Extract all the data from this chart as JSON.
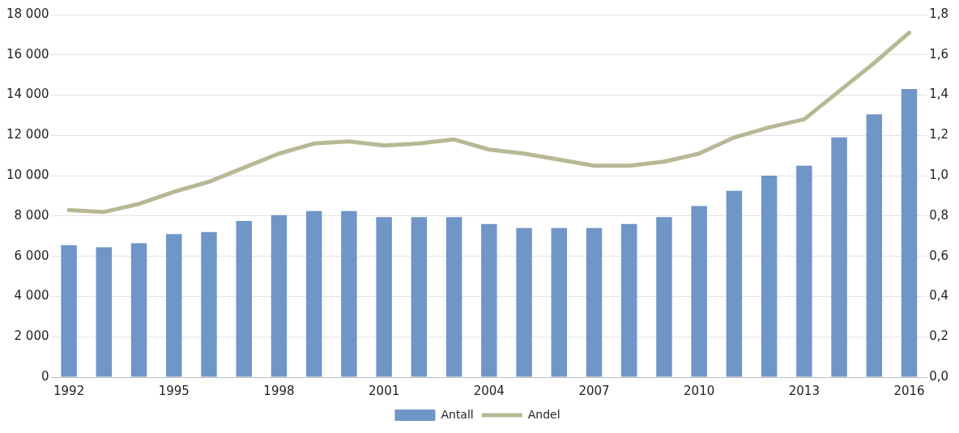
{
  "chart_data": {
    "type": "bar",
    "categories": [
      "1992",
      null,
      null,
      "1995",
      null,
      null,
      "1998",
      null,
      null,
      "2001",
      null,
      null,
      "2004",
      null,
      null,
      "2007",
      null,
      null,
      "2010",
      null,
      null,
      "2013",
      null,
      null,
      "2016"
    ],
    "series": [
      {
        "name": "Antall",
        "color": "#7095c7",
        "values": [
          6550,
          6450,
          6650,
          7100,
          7200,
          7750,
          8050,
          8250,
          8250,
          7950,
          7950,
          7950,
          7600,
          7400,
          7400,
          7400,
          7600,
          7950,
          8500,
          9250,
          10000,
          10500,
          11900,
          13050,
          14300
        ]
      },
      {
        "name": "Andel",
        "type": "line",
        "axis": "y2",
        "color": "#b8b896",
        "values": [
          0.83,
          0.82,
          0.86,
          0.92,
          0.97,
          1.04,
          1.11,
          1.16,
          1.17,
          1.15,
          1.16,
          1.18,
          1.13,
          1.11,
          1.08,
          1.05,
          1.05,
          1.07,
          1.11,
          1.19,
          1.24,
          1.28,
          1.42,
          1.56,
          1.71
        ]
      }
    ],
    "ylim": [
      0,
      18000
    ],
    "yticks": [
      0,
      {
        "value": 2000,
        "label": "2 000"
      },
      {
        "value": 4000,
        "label": "4 000"
      },
      {
        "value": 6000,
        "label": "6 000"
      },
      {
        "value": 8000,
        "label": "8 000"
      },
      {
        "value": 10000,
        "label": "10 000"
      },
      {
        "value": 12000,
        "label": "12 000"
      },
      {
        "value": 14000,
        "label": "14 000"
      },
      {
        "value": 16000,
        "label": "16 000"
      },
      {
        "value": 18000,
        "label": "18 000"
      }
    ],
    "y2lim": [
      0,
      1.8
    ],
    "y2ticks": [
      {
        "value": 0,
        "label": "0,0"
      },
      {
        "value": 0.2,
        "label": "0,2"
      },
      {
        "value": 0.4,
        "label": "0,4"
      },
      {
        "value": 0.6,
        "label": "0,6"
      },
      {
        "value": 0.8,
        "label": "0,8"
      },
      {
        "value": 1.0,
        "label": "1,0"
      },
      {
        "value": 1.2,
        "label": "1,2"
      },
      {
        "value": 1.4,
        "label": "1,4"
      },
      {
        "value": 1.6,
        "label": "1,6"
      },
      {
        "value": 1.8,
        "label": "1,8"
      }
    ],
    "grid": "y",
    "legend": "bottom",
    "marker": "none",
    "line_style": "solid"
  }
}
